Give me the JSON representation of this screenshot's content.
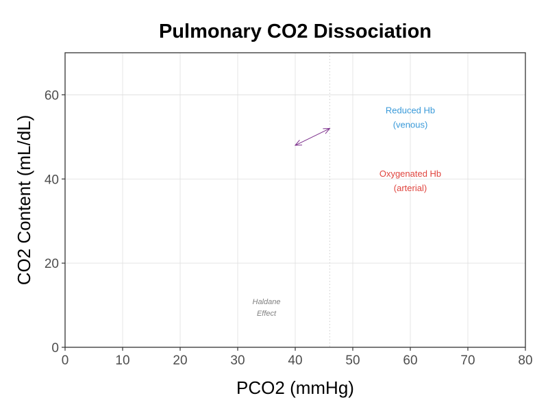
{
  "chart_data": {
    "type": "line",
    "title": "Pulmonary CO2 Dissociation",
    "xlabel": "PCO2 (mmHg)",
    "ylabel": "CO2 Content (mL/dL)",
    "xlim": [
      0,
      80
    ],
    "ylim": [
      0,
      70
    ],
    "x_ticks": [
      0,
      10,
      20,
      30,
      40,
      50,
      60,
      70,
      80
    ],
    "y_ticks": [
      0,
      20,
      40,
      60
    ],
    "grid": true,
    "reference_line": {
      "x": 46,
      "style": "dotted"
    },
    "series": [],
    "arrow": {
      "from": [
        40,
        48
      ],
      "to": [
        46,
        52
      ],
      "color": "#7b2d8b",
      "double_headed": true
    },
    "annotations": [
      {
        "lines": [
          "Reduced Hb",
          "(venous)"
        ],
        "x": 60,
        "y": 54.5,
        "color": "#3a9ad9"
      },
      {
        "lines": [
          "Oxygenated Hb",
          "(arterial)"
        ],
        "x": 60,
        "y": 39.5,
        "color": "#e0443e"
      },
      {
        "lines": [
          "Haldane",
          "Effect"
        ],
        "x": 35,
        "y": 9.5,
        "color": "#808080",
        "italic": true
      }
    ]
  }
}
